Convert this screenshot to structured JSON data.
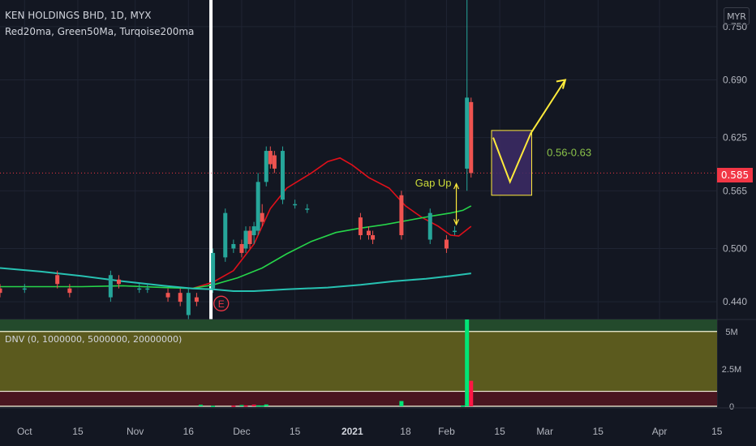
{
  "header": {
    "title": "KEN HOLDINGS BHD, 1D, MYX",
    "indicators": "Red20ma, Green50Ma, Turqoise200ma",
    "currency": "MYR",
    "last_price": "0.585"
  },
  "volume_pane": {
    "title": "DNV (0, 1000000, 5000000, 20000000)"
  },
  "annotations": {
    "gap_label": "Gap Up",
    "target_label": "0.56-0.63",
    "earnings_marker": "E"
  },
  "colors": {
    "background": "#131722",
    "up": "#26a69a",
    "down": "#ef5350",
    "ma20": "#e0101a",
    "ma50": "#26d54a",
    "ma200": "#27c2b2",
    "annotation": "#ffeb3b",
    "target_box": "#3d2c66",
    "volume_green": "#00e676",
    "volume_red": "#ff1744"
  },
  "chart_data": [
    {
      "type": "candlestick",
      "title": "KEN HOLDINGS BHD, 1D, MYX",
      "x_ticks": [
        "Oct",
        "15",
        "Nov",
        "16",
        "Dec",
        "15",
        "2021",
        "18",
        "Feb",
        "15",
        "Mar",
        "15",
        "Apr",
        "15"
      ],
      "y_ticks": [
        0.44,
        0.5,
        0.565,
        0.625,
        0.69,
        0.75
      ],
      "ylim": [
        0.42,
        0.78
      ],
      "last_price": 0.585,
      "candles": [
        {
          "d": 0,
          "o": 0.455,
          "h": 0.46,
          "l": 0.445,
          "c": 0.45
        },
        {
          "d": 6,
          "o": 0.455,
          "h": 0.46,
          "l": 0.45,
          "c": 0.455
        },
        {
          "d": 14,
          "o": 0.47,
          "h": 0.475,
          "l": 0.455,
          "c": 0.46
        },
        {
          "d": 17,
          "o": 0.455,
          "h": 0.46,
          "l": 0.445,
          "c": 0.45
        },
        {
          "d": 27,
          "o": 0.445,
          "h": 0.475,
          "l": 0.44,
          "c": 0.47
        },
        {
          "d": 29,
          "o": 0.465,
          "h": 0.47,
          "l": 0.455,
          "c": 0.46
        },
        {
          "d": 34,
          "o": 0.455,
          "h": 0.46,
          "l": 0.45,
          "c": 0.455
        },
        {
          "d": 36,
          "o": 0.455,
          "h": 0.46,
          "l": 0.45,
          "c": 0.455
        },
        {
          "d": 41,
          "o": 0.45,
          "h": 0.455,
          "l": 0.44,
          "c": 0.445
        },
        {
          "d": 44,
          "o": 0.45,
          "h": 0.455,
          "l": 0.435,
          "c": 0.44
        },
        {
          "d": 46,
          "o": 0.425,
          "h": 0.455,
          "l": 0.42,
          "c": 0.45
        },
        {
          "d": 48,
          "o": 0.445,
          "h": 0.45,
          "l": 0.435,
          "c": 0.44
        },
        {
          "d": 52,
          "o": 0.455,
          "h": 0.5,
          "l": 0.45,
          "c": 0.495
        },
        {
          "d": 55,
          "o": 0.49,
          "h": 0.545,
          "l": 0.485,
          "c": 0.54
        },
        {
          "d": 57,
          "o": 0.5,
          "h": 0.51,
          "l": 0.495,
          "c": 0.505
        },
        {
          "d": 59,
          "o": 0.505,
          "h": 0.51,
          "l": 0.49,
          "c": 0.495
        },
        {
          "d": 60,
          "o": 0.5,
          "h": 0.525,
          "l": 0.495,
          "c": 0.52
        },
        {
          "d": 61,
          "o": 0.52,
          "h": 0.525,
          "l": 0.5,
          "c": 0.505
        },
        {
          "d": 62,
          "o": 0.515,
          "h": 0.53,
          "l": 0.505,
          "c": 0.525
        },
        {
          "d": 63,
          "o": 0.52,
          "h": 0.585,
          "l": 0.515,
          "c": 0.575
        },
        {
          "d": 64,
          "o": 0.54,
          "h": 0.55,
          "l": 0.525,
          "c": 0.53
        },
        {
          "d": 65,
          "o": 0.575,
          "h": 0.615,
          "l": 0.57,
          "c": 0.61
        },
        {
          "d": 66,
          "o": 0.61,
          "h": 0.615,
          "l": 0.59,
          "c": 0.595
        },
        {
          "d": 67,
          "o": 0.605,
          "h": 0.61,
          "l": 0.585,
          "c": 0.59
        },
        {
          "d": 69,
          "o": 0.555,
          "h": 0.615,
          "l": 0.55,
          "c": 0.61
        },
        {
          "d": 72,
          "o": 0.55,
          "h": 0.555,
          "l": 0.545,
          "c": 0.55
        },
        {
          "d": 75,
          "o": 0.545,
          "h": 0.55,
          "l": 0.54,
          "c": 0.545
        },
        {
          "d": 88,
          "o": 0.535,
          "h": 0.54,
          "l": 0.51,
          "c": 0.515
        },
        {
          "d": 90,
          "o": 0.52,
          "h": 0.525,
          "l": 0.51,
          "c": 0.515
        },
        {
          "d": 91,
          "o": 0.515,
          "h": 0.52,
          "l": 0.505,
          "c": 0.51
        },
        {
          "d": 98,
          "o": 0.56,
          "h": 0.565,
          "l": 0.51,
          "c": 0.515
        },
        {
          "d": 105,
          "o": 0.51,
          "h": 0.545,
          "l": 0.505,
          "c": 0.54
        },
        {
          "d": 109,
          "o": 0.51,
          "h": 0.515,
          "l": 0.495,
          "c": 0.5
        },
        {
          "d": 111,
          "o": 0.52,
          "h": 0.525,
          "l": 0.515,
          "c": 0.52
        },
        {
          "d": 114,
          "o": 0.59,
          "h": 0.78,
          "l": 0.565,
          "c": 0.67
        },
        {
          "d": 115,
          "o": 0.665,
          "h": 0.67,
          "l": 0.58,
          "c": 0.585
        }
      ],
      "ma_series": [
        {
          "name": "Red20ma",
          "points": [
            [
              47,
              0.455
            ],
            [
              52,
              0.462
            ],
            [
              57,
              0.475
            ],
            [
              62,
              0.505
            ],
            [
              66,
              0.545
            ],
            [
              70,
              0.568
            ],
            [
              76,
              0.585
            ],
            [
              80,
              0.598
            ],
            [
              83,
              0.602
            ],
            [
              86,
              0.594
            ],
            [
              90,
              0.58
            ],
            [
              95,
              0.568
            ],
            [
              99,
              0.548
            ],
            [
              103,
              0.535
            ],
            [
              107,
              0.525
            ],
            [
              110,
              0.515
            ],
            [
              112,
              0.514
            ],
            [
              115,
              0.525
            ]
          ]
        },
        {
          "name": "Green50Ma",
          "points": [
            [
              0,
              0.457
            ],
            [
              10,
              0.457
            ],
            [
              20,
              0.457
            ],
            [
              30,
              0.458
            ],
            [
              40,
              0.456
            ],
            [
              47,
              0.455
            ],
            [
              52,
              0.459
            ],
            [
              58,
              0.467
            ],
            [
              64,
              0.478
            ],
            [
              70,
              0.494
            ],
            [
              76,
              0.508
            ],
            [
              82,
              0.518
            ],
            [
              88,
              0.523
            ],
            [
              94,
              0.527
            ],
            [
              100,
              0.532
            ],
            [
              106,
              0.537
            ],
            [
              110,
              0.54
            ],
            [
              113,
              0.543
            ],
            [
              115,
              0.548
            ]
          ]
        },
        {
          "name": "Turqoise200ma",
          "points": [
            [
              0,
              0.478
            ],
            [
              10,
              0.474
            ],
            [
              20,
              0.469
            ],
            [
              30,
              0.463
            ],
            [
              40,
              0.458
            ],
            [
              47,
              0.455
            ],
            [
              52,
              0.454
            ],
            [
              57,
              0.452
            ],
            [
              62,
              0.452
            ],
            [
              70,
              0.454
            ],
            [
              80,
              0.456
            ],
            [
              88,
              0.459
            ],
            [
              96,
              0.463
            ],
            [
              104,
              0.466
            ],
            [
              110,
              0.469
            ],
            [
              115,
              0.472
            ]
          ]
        }
      ]
    },
    {
      "type": "bar",
      "title": "DNV (0, 1000000, 5000000, 20000000)",
      "y_ticks": [
        "5M",
        "2.5M",
        "0"
      ],
      "ylim": [
        0,
        5800000
      ],
      "thresholds": [
        1000000,
        5000000
      ],
      "bars": [
        {
          "d": 49,
          "v": 100000,
          "up": true
        },
        {
          "d": 52,
          "v": 30000,
          "up": true
        },
        {
          "d": 57,
          "v": 40000,
          "up": false
        },
        {
          "d": 59,
          "v": 80000,
          "up": true
        },
        {
          "d": 60,
          "v": 60000,
          "up": false
        },
        {
          "d": 62,
          "v": 110000,
          "up": false
        },
        {
          "d": 63,
          "v": 60000,
          "up": true
        },
        {
          "d": 64,
          "v": 50000,
          "up": true
        },
        {
          "d": 65,
          "v": 120000,
          "up": true
        },
        {
          "d": 98,
          "v": 350000,
          "up": true
        },
        {
          "d": 113,
          "v": 50000,
          "up": true
        },
        {
          "d": 114,
          "v": 5800000,
          "up": true
        },
        {
          "d": 115,
          "v": 1700000,
          "up": false
        }
      ]
    }
  ]
}
